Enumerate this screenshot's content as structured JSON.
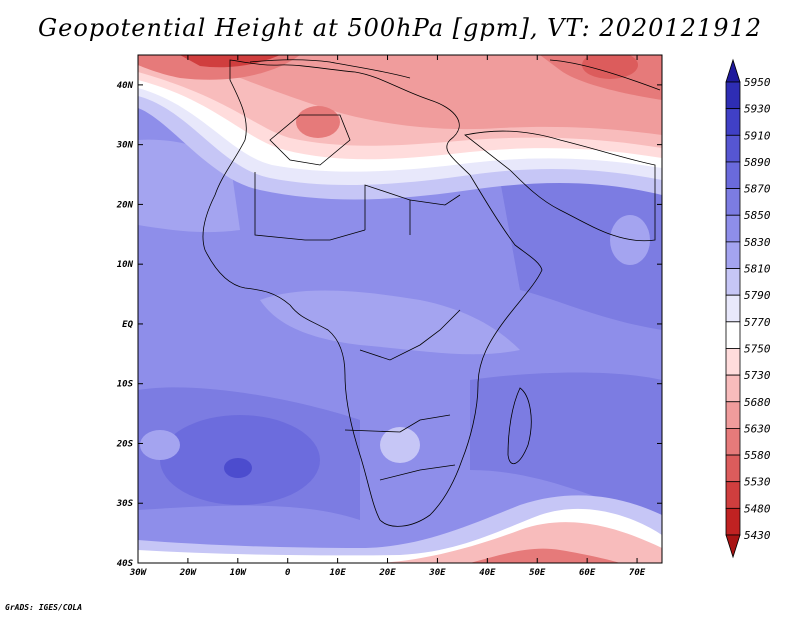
{
  "title": "Geopotential Height at 500hPa [gpm], VT: 2020121912",
  "footer": "GrADS: IGES/COLA",
  "map": {
    "variable": "Geopotential Height at 500hPa",
    "units": "gpm",
    "valid_time": "2020121912",
    "lon_range": [
      -30,
      75
    ],
    "lat_range": [
      -40,
      45
    ],
    "lon_ticks": [
      "30W",
      "20W",
      "10W",
      "0",
      "10E",
      "20E",
      "30E",
      "40E",
      "50E",
      "60E",
      "70E"
    ],
    "lon_tick_values": [
      -30,
      -20,
      -10,
      0,
      10,
      20,
      30,
      40,
      50,
      60,
      70
    ],
    "lat_ticks": [
      "40N",
      "30N",
      "20N",
      "10N",
      "EQ",
      "10S",
      "20S",
      "30S",
      "40S"
    ],
    "lat_tick_values": [
      40,
      30,
      20,
      10,
      0,
      -10,
      -20,
      -30,
      -40
    ]
  },
  "colorbar": {
    "levels": [
      "5950",
      "5930",
      "5910",
      "5890",
      "5870",
      "5850",
      "5830",
      "5810",
      "5790",
      "5770",
      "5750",
      "5730",
      "5680",
      "5630",
      "5580",
      "5530",
      "5480",
      "5430"
    ],
    "colors": [
      "#1f1a9c",
      "#2e2db4",
      "#4040c6",
      "#5656d2",
      "#6a6adc",
      "#7c7ce2",
      "#8e8eea",
      "#a4a4f0",
      "#c6c6f6",
      "#e8e8fb",
      "#ffffff",
      "#ffdcdc",
      "#f8bcbc",
      "#f09c9c",
      "#e67a7a",
      "#dc5c5c",
      "#d03e3e",
      "#c02222",
      "#a81414"
    ]
  }
}
